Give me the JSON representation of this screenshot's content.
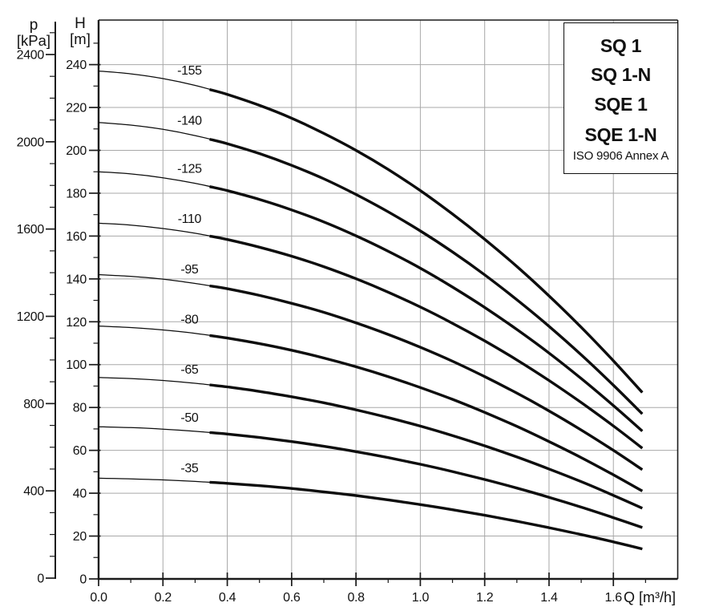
{
  "pressure_axis": {
    "title_line1": "p",
    "title_line2": "[kPa]",
    "tick_labels": [
      "0",
      "400",
      "800",
      "1200",
      "1600",
      "2000",
      "2400"
    ],
    "major_step_kpa": 400,
    "minor_step_kpa": 100
  },
  "head_axis": {
    "title_line1": "H",
    "title_line2": "[m]",
    "tick_labels": [
      "0",
      "20",
      "40",
      "60",
      "80",
      "100",
      "120",
      "140",
      "160",
      "180",
      "200",
      "220",
      "240"
    ],
    "major_step_m": 20,
    "minor_step_m": 10
  },
  "flow_axis": {
    "unit_label": "Q [m³/h]",
    "tick_labels": [
      "0.0",
      "0.2",
      "0.4",
      "0.6",
      "0.8",
      "1.0",
      "1.2",
      "1.4",
      "1.6"
    ],
    "major_step": 0.2,
    "minor_step": 0.1
  },
  "legend": {
    "lines": [
      "SQ 1",
      "SQ 1-N",
      "SQE 1",
      "SQE 1-N"
    ],
    "note": "ISO 9906 Annex A"
  },
  "colors": {
    "curve": "#0d0d0d",
    "axis": "#1a1a1a",
    "grid": "#a8a8a8",
    "background": "#ffffff",
    "text": "#111111"
  },
  "chart_data": {
    "type": "line",
    "title": "",
    "xlabel": "Q [m³/h]",
    "ylabel": "H [m]",
    "ylabel_secondary": "p [kPa]",
    "xlim": [
      0,
      1.8
    ],
    "ylim_m": [
      0,
      260.8
    ],
    "ylim_kpa": [
      0,
      2547
    ],
    "grid": true,
    "legend_position": "top-right",
    "legend_entries": [
      "SQ 1",
      "SQ 1-N",
      "SQE 1",
      "SQE 1-N"
    ],
    "standard_note": "ISO 9906 Annex A",
    "thick_from_q": 0.345,
    "curve_label_q": 0.27,
    "x": [
      0,
      0.1,
      0.2,
      0.3,
      0.4,
      0.5,
      0.6,
      0.7,
      0.8,
      0.9,
      1.0,
      1.1,
      1.2,
      1.3,
      1.4,
      1.5,
      1.6,
      1.69
    ],
    "series": [
      {
        "label": "-155",
        "values": [
          237,
          235.7,
          233.5,
          230.3,
          226.1,
          221.0,
          215.0,
          207.9,
          200.0,
          191.1,
          181.2,
          170.3,
          158.5,
          145.8,
          132.1,
          117.4,
          101.8,
          87
        ]
      },
      {
        "label": "-140",
        "values": [
          213,
          211.8,
          209.8,
          206.9,
          203.1,
          198.5,
          193.0,
          186.7,
          179.4,
          171.3,
          162.4,
          152.6,
          141.9,
          130.3,
          117.9,
          104.6,
          90.4,
          77
        ]
      },
      {
        "label": "-125",
        "values": [
          190,
          189.0,
          187.2,
          184.6,
          181.2,
          177.1,
          172.2,
          166.6,
          160.1,
          152.9,
          145.0,
          136.2,
          126.7,
          116.4,
          105.4,
          93.5,
          80.9,
          69
        ]
      },
      {
        "label": "-110",
        "values": [
          166,
          165.1,
          163.5,
          161.3,
          158.4,
          154.8,
          150.6,
          145.7,
          140.1,
          133.8,
          126.9,
          119.3,
          111.1,
          102.2,
          92.6,
          82.3,
          71.4,
          61
        ]
      },
      {
        "label": "-95",
        "values": [
          142,
          141.2,
          139.9,
          137.9,
          135.4,
          132.3,
          128.6,
          124.4,
          119.5,
          114.1,
          108.1,
          101.6,
          94.4,
          86.7,
          78.4,
          69.5,
          60.0,
          51
        ]
      },
      {
        "label": "-80",
        "values": [
          118,
          117.3,
          116.2,
          114.6,
          112.4,
          109.8,
          106.7,
          103.1,
          99.0,
          94.4,
          89.3,
          83.8,
          77.7,
          71.2,
          64.1,
          56.6,
          48.6,
          41
        ]
      },
      {
        "label": "-65",
        "values": [
          94,
          93.5,
          92.6,
          91.3,
          89.6,
          87.5,
          85.0,
          82.2,
          78.9,
          75.3,
          71.3,
          66.9,
          62.1,
          56.9,
          51.3,
          45.4,
          39.0,
          33
        ]
      },
      {
        "label": "-50",
        "values": [
          71,
          70.6,
          69.9,
          68.9,
          67.6,
          66.0,
          64.1,
          61.9,
          59.4,
          56.6,
          53.5,
          50.1,
          46.4,
          42.4,
          38.1,
          33.5,
          28.6,
          24
        ]
      },
      {
        "label": "-35",
        "values": [
          47,
          46.7,
          46.2,
          45.5,
          44.6,
          43.5,
          42.2,
          40.6,
          38.9,
          36.9,
          34.7,
          32.3,
          29.7,
          26.9,
          23.9,
          20.7,
          17.3,
          14
        ]
      }
    ]
  }
}
